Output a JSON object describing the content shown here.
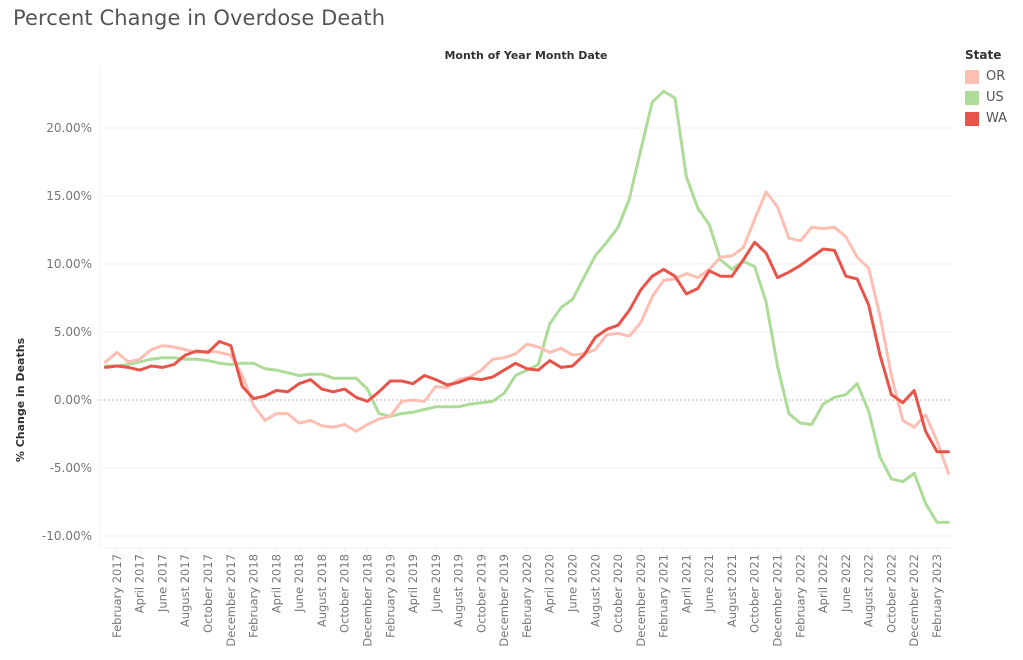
{
  "title": "Percent Change in Overdose Death",
  "chart_data": {
    "type": "line",
    "title": "Percent Change in Overdose Death",
    "column_header": "Month of Year Month Date",
    "xlabel": "",
    "ylabel": "% Change in Deaths",
    "ylim": [
      -10.5,
      24.5
    ],
    "yticks": [
      -10,
      -5,
      0,
      5,
      10,
      15,
      20
    ],
    "ytick_labels": [
      "-10.00%",
      "-5.00%",
      "0.00%",
      "5.00%",
      "10.00%",
      "15.00%",
      "20.00%"
    ],
    "grid": true,
    "zero_line": "dotted",
    "legend": {
      "title": "State",
      "placement": "right",
      "entries": [
        "OR",
        "US",
        "WA"
      ]
    },
    "x_start": "January 2017",
    "x_end": "March 2023",
    "x_frequency": "monthly",
    "xtick_every": 2,
    "xtick_first_index": 1,
    "xtick_labels": [
      "February 2017",
      "April 2017",
      "June 2017",
      "August 2017",
      "October 2017",
      "December 2017",
      "February 2018",
      "April 2018",
      "June 2018",
      "August 2018",
      "October 2018",
      "December 2018",
      "February 2019",
      "April 2019",
      "June 2019",
      "August 2019",
      "October 2019",
      "December 2019",
      "February 2020",
      "April 2020",
      "June 2020",
      "August 2020",
      "October 2020",
      "December 2020",
      "February 2021",
      "April 2021",
      "June 2021",
      "August 2021",
      "October 2021",
      "December 2021",
      "February 2022",
      "April 2022",
      "June 2022",
      "August 2022",
      "October 2022",
      "December 2022",
      "February 2023"
    ],
    "series": [
      {
        "name": "OR",
        "color": "#ffbeb2",
        "values": [
          2.8,
          3.5,
          2.8,
          3.0,
          3.7,
          4.0,
          3.9,
          3.7,
          3.5,
          3.6,
          3.5,
          3.3,
          1.8,
          -0.4,
          -1.5,
          -1.0,
          -1.0,
          -1.7,
          -1.5,
          -1.9,
          -2.0,
          -1.8,
          -2.3,
          -1.8,
          -1.4,
          -1.2,
          -0.1,
          0.0,
          -0.1,
          1.0,
          0.9,
          1.5,
          1.7,
          2.2,
          3.0,
          3.1,
          3.4,
          4.1,
          3.9,
          3.5,
          3.8,
          3.3,
          3.4,
          3.7,
          4.8,
          4.9,
          4.7,
          5.7,
          7.6,
          8.8,
          8.9,
          9.3,
          9.0,
          9.6,
          10.5,
          10.6,
          11.2,
          13.3,
          15.3,
          14.2,
          11.9,
          11.7,
          12.7,
          12.6,
          12.7,
          12.0,
          10.5,
          9.7,
          6.2,
          1.8,
          -1.5,
          -2.0,
          -1.1,
          -3.0,
          -5.4
        ]
      },
      {
        "name": "US",
        "color": "#addc98",
        "values": [
          2.5,
          2.5,
          2.6,
          2.8,
          3.0,
          3.1,
          3.1,
          3.0,
          3.0,
          2.9,
          2.7,
          2.6,
          2.7,
          2.7,
          2.3,
          2.2,
          2.0,
          1.8,
          1.9,
          1.9,
          1.6,
          1.6,
          1.6,
          0.8,
          -1.0,
          -1.2,
          -1.0,
          -0.9,
          -0.7,
          -0.5,
          -0.5,
          -0.5,
          -0.3,
          -0.2,
          -0.1,
          0.5,
          1.8,
          2.2,
          2.6,
          5.6,
          6.8,
          7.4,
          9.0,
          10.6,
          11.6,
          12.7,
          14.8,
          18.4,
          21.9,
          22.7,
          22.2,
          16.4,
          14.1,
          12.9,
          10.3,
          9.6,
          10.2,
          9.8,
          7.2,
          2.5,
          -1.0,
          -1.7,
          -1.8,
          -0.3,
          0.2,
          0.4,
          1.2,
          -0.8,
          -4.2,
          -5.8,
          -6.0,
          -5.4,
          -7.6,
          -9.0,
          -9.0
        ]
      },
      {
        "name": "WA",
        "color": "#e8534a",
        "values": [
          2.4,
          2.5,
          2.4,
          2.2,
          2.5,
          2.4,
          2.6,
          3.3,
          3.6,
          3.5,
          4.3,
          4.0,
          1.0,
          0.1,
          0.3,
          0.7,
          0.6,
          1.2,
          1.5,
          0.8,
          0.6,
          0.8,
          0.2,
          -0.1,
          0.6,
          1.4,
          1.4,
          1.2,
          1.8,
          1.5,
          1.1,
          1.3,
          1.6,
          1.5,
          1.7,
          2.2,
          2.7,
          2.3,
          2.2,
          2.9,
          2.4,
          2.5,
          3.3,
          4.6,
          5.2,
          5.5,
          6.6,
          8.1,
          9.1,
          9.6,
          9.1,
          7.8,
          8.2,
          9.5,
          9.1,
          9.1,
          10.3,
          11.6,
          10.8,
          9.0,
          9.4,
          9.9,
          10.5,
          11.1,
          11.0,
          9.1,
          8.9,
          7.0,
          3.3,
          0.4,
          -0.2,
          0.7,
          -2.3,
          -3.8,
          -3.8
        ]
      }
    ]
  }
}
